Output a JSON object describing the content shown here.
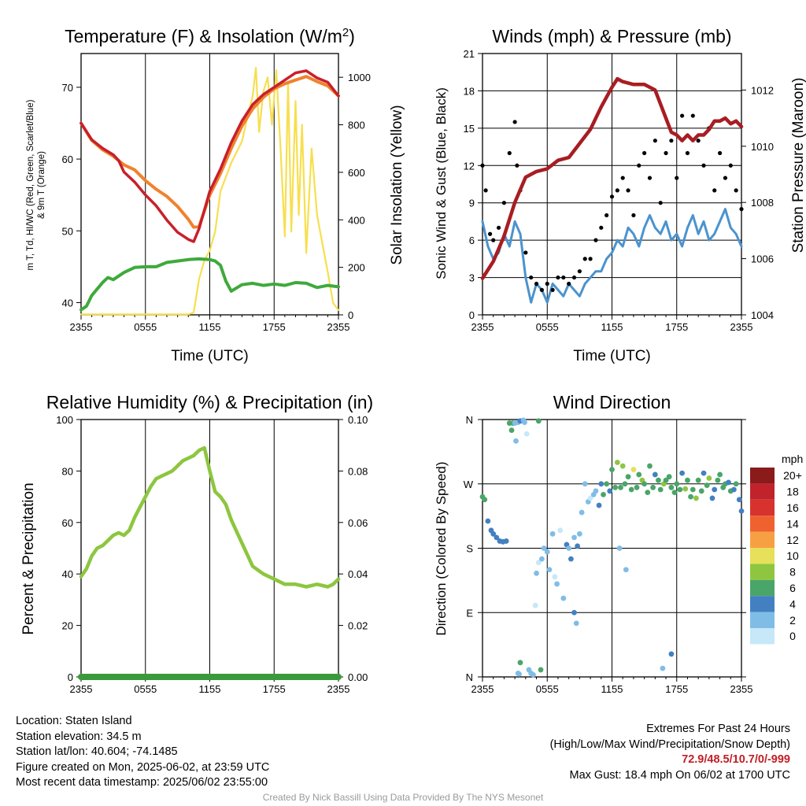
{
  "colors": {
    "temp_red": "#c8202a",
    "dewpoint_green": "#3fa93c",
    "nine_m_orange": "#f0822e",
    "solar_yellow": "#f7df4f",
    "wind_blue": "#4b93cf",
    "gust_black": "#000000",
    "pressure_maroon": "#a81d22",
    "rh_green": "#8dc63f",
    "precip_green": "#3a9a3a"
  },
  "chart_data": [
    {
      "type": "line",
      "title": "Temperature (F) & Insolation (W/m²)",
      "xlabel": "Time (UTC)",
      "ylabel": "2m T, Td, HI/WC (Red, Green, Scarlet/Blue) & 9m T (Orange)",
      "ylabel2": "Solar Insolation (Yellow)",
      "x_ticks": [
        "2355",
        "0555",
        "1155",
        "1755",
        "2355"
      ],
      "y_ticks": [
        40,
        50,
        60,
        70
      ],
      "y2_ticks": [
        0,
        200,
        400,
        600,
        800,
        1000
      ],
      "ylim": [
        38.3,
        74.7
      ],
      "y2lim": [
        0,
        1100
      ],
      "grid": true,
      "series": [
        {
          "name": "2m T",
          "color": "temp_red",
          "x": [
            0,
            1,
            2,
            3,
            3.5,
            4,
            5,
            6,
            7,
            8,
            9,
            10,
            10.5,
            11,
            12,
            13,
            14,
            15,
            16,
            17,
            18,
            19,
            20,
            21,
            22,
            23,
            24
          ],
          "values": [
            65.0,
            62.7,
            61.5,
            60.6,
            59.8,
            58.2,
            56.8,
            55.0,
            53.5,
            51.5,
            49.8,
            48.8,
            48.5,
            50.3,
            55.5,
            58.6,
            62.3,
            65.3,
            67.6,
            69.0,
            70.0,
            71.0,
            72.0,
            72.3,
            71.3,
            70.7,
            68.8
          ]
        },
        {
          "name": "9m T",
          "color": "nine_m_orange",
          "x": [
            0,
            1,
            2,
            3,
            4,
            5,
            6,
            7,
            8,
            9,
            10,
            10.5,
            11,
            12,
            13,
            14,
            15,
            16,
            17,
            18,
            19,
            20,
            21,
            22,
            23,
            24
          ],
          "values": [
            65.0,
            62.6,
            61.3,
            60.4,
            59.2,
            58.5,
            57.0,
            55.8,
            54.8,
            53.4,
            51.6,
            50.5,
            50.6,
            55.0,
            58.0,
            61.5,
            64.6,
            67.0,
            68.6,
            69.8,
            70.5,
            71.0,
            71.5,
            70.8,
            70.2,
            68.8
          ]
        },
        {
          "name": "Td",
          "color": "dewpoint_green",
          "x": [
            0,
            0.5,
            1,
            2,
            2.5,
            3,
            4,
            5,
            6,
            7,
            8,
            9,
            10,
            11,
            12,
            12.5,
            13,
            13.5,
            14,
            15,
            16,
            17,
            18,
            19,
            20,
            21,
            22,
            23,
            24
          ],
          "values": [
            39.0,
            39.5,
            41.0,
            42.8,
            43.5,
            43.2,
            44.2,
            44.9,
            45.0,
            45.0,
            45.6,
            45.8,
            46.0,
            46.1,
            46.0,
            45.8,
            45.2,
            43.0,
            41.6,
            42.5,
            42.7,
            42.4,
            42.6,
            42.4,
            42.8,
            42.7,
            42.1,
            42.4,
            42.2
          ]
        },
        {
          "name": "Solar Insolation",
          "color": "solar_yellow",
          "axis": "y2",
          "x": [
            0,
            5,
            8,
            9,
            10,
            10.5,
            11,
            11.5,
            12,
            12.5,
            13,
            14,
            15,
            15.5,
            16,
            16.3,
            16.6,
            17,
            17.4,
            17.8,
            18.2,
            18.6,
            19,
            19.3,
            19.6,
            20,
            20.3,
            20.6,
            21,
            21.5,
            22,
            22.5,
            23,
            23.5,
            24
          ],
          "values": [
            2,
            2,
            2,
            2,
            2,
            10,
            150,
            230,
            270,
            350,
            520,
            640,
            730,
            830,
            920,
            1040,
            770,
            940,
            1000,
            800,
            1030,
            700,
            330,
            980,
            350,
            900,
            420,
            800,
            260,
            700,
            420,
            300,
            180,
            50,
            20
          ]
        }
      ]
    },
    {
      "type": "line",
      "title": "Winds (mph) & Pressure (mb)",
      "xlabel": "Time (UTC)",
      "ylabel": "Sonic Wind & Gust (Blue, Black)",
      "ylabel2": "Station Pressure (Maroon)",
      "x_ticks": [
        "2355",
        "0555",
        "1155",
        "1755",
        "2355"
      ],
      "y_ticks": [
        0,
        3,
        6,
        9,
        12,
        15,
        18,
        21
      ],
      "y2_ticks": [
        1004,
        1006,
        1008,
        1010,
        1012
      ],
      "ylim": [
        0,
        21
      ],
      "y2lim": [
        1004,
        1013.3
      ],
      "grid": true,
      "series": [
        {
          "name": "Sonic Wind",
          "color": "wind_blue",
          "x": [
            0,
            0.5,
            1,
            1.5,
            2,
            2.5,
            3,
            3.5,
            4,
            4.5,
            5,
            5.5,
            6,
            6.5,
            7,
            7.5,
            8,
            8.5,
            9,
            9.5,
            10,
            10.5,
            11,
            11.5,
            12,
            12.5,
            13,
            13.5,
            14,
            14.5,
            15,
            15.5,
            16,
            16.5,
            17,
            17.5,
            18,
            18.5,
            19,
            19.5,
            20,
            20.5,
            21,
            21.5,
            22,
            22.5,
            23,
            23.5,
            24
          ],
          "values": [
            7.5,
            5.5,
            4.5,
            5.0,
            6.5,
            5.5,
            7.5,
            6.5,
            3.0,
            1.0,
            2.5,
            2.0,
            1.0,
            2.5,
            2.0,
            1.5,
            2.5,
            2.0,
            1.5,
            2.5,
            3.0,
            3.5,
            3.5,
            4.5,
            5.0,
            6.0,
            5.5,
            7.0,
            6.5,
            5.5,
            7.0,
            8.0,
            7.0,
            6.5,
            7.5,
            6.0,
            6.5,
            5.5,
            7.0,
            8.0,
            6.5,
            7.5,
            6.0,
            6.5,
            7.5,
            8.5,
            7.0,
            6.5,
            5.5
          ]
        },
        {
          "name": "Gust",
          "color": "gust_black",
          "render": "points",
          "x": [
            0,
            0.3,
            0.7,
            1,
            1.5,
            2,
            2.5,
            3,
            3.2,
            3.5,
            4,
            4.5,
            5,
            5.5,
            6,
            6.5,
            7,
            7.5,
            8,
            8.5,
            9,
            9.5,
            10,
            10.5,
            11,
            11.5,
            12,
            12.5,
            13,
            13.5,
            14,
            14.5,
            15,
            15.5,
            16,
            16.5,
            17,
            17.5,
            18,
            18.5,
            19,
            19.5,
            20,
            20.5,
            21,
            21.5,
            22,
            22.5,
            23,
            23.5,
            24
          ],
          "values": [
            12,
            10,
            6.5,
            6,
            7,
            9,
            13,
            15.5,
            12,
            10,
            5,
            3,
            2.5,
            2,
            2.5,
            2,
            3,
            3,
            2.5,
            3,
            3.5,
            4.5,
            4.5,
            6,
            7,
            8,
            9.5,
            10,
            11,
            10,
            8,
            12,
            13,
            11,
            14,
            9,
            13,
            14,
            11,
            16,
            13,
            16,
            14,
            12,
            15,
            10,
            13,
            11,
            12,
            10,
            8.5
          ]
        },
        {
          "name": "Station Pressure",
          "color": "pressure_maroon",
          "axis": "y2",
          "x": [
            0,
            1,
            2,
            3,
            4,
            5,
            6,
            7,
            8,
            9,
            10,
            11,
            12,
            12.5,
            13,
            14,
            15,
            16,
            16.5,
            17,
            17.5,
            18,
            18.5,
            19,
            19.5,
            20,
            20.5,
            21,
            21.5,
            22,
            22.5,
            23,
            23.5,
            24
          ],
          "values": [
            1005.3,
            1005.9,
            1006.8,
            1008.0,
            1008.9,
            1009.1,
            1009.2,
            1009.5,
            1009.6,
            1010.1,
            1010.6,
            1011.4,
            1012.1,
            1012.4,
            1012.3,
            1012.2,
            1012.2,
            1012.0,
            1011.5,
            1011.0,
            1010.5,
            1010.4,
            1010.2,
            1010.4,
            1010.2,
            1010.4,
            1010.4,
            1010.6,
            1010.9,
            1010.9,
            1011.0,
            1010.8,
            1010.9,
            1010.7
          ]
        }
      ]
    },
    {
      "type": "line",
      "title": "Relative Humidity (%) & Precipitation (in)",
      "xlabel": "",
      "ylabel": "Percent & Precipitation",
      "x_ticks": [
        "2355",
        "0555",
        "1155",
        "1755",
        "2355"
      ],
      "y_ticks": [
        0,
        20,
        40,
        60,
        80,
        100
      ],
      "y2_ticks": [
        "0.00",
        "0.02",
        "0.04",
        "0.06",
        "0.08",
        "0.10"
      ],
      "ylim": [
        0,
        100
      ],
      "y2lim": [
        0,
        0.1
      ],
      "grid": true,
      "series": [
        {
          "name": "Relative Humidity",
          "color": "rh_green",
          "x": [
            0,
            0.5,
            1,
            1.5,
            2,
            2.5,
            3,
            3.5,
            4,
            4.5,
            5,
            5.5,
            6,
            6.5,
            7,
            7.5,
            8,
            8.5,
            9,
            9.5,
            10,
            10.5,
            11,
            11.5,
            12,
            12.5,
            13,
            13.5,
            14,
            15,
            16,
            17,
            18,
            19,
            20,
            21,
            22,
            23,
            23.5,
            24
          ],
          "values": [
            39,
            42,
            47,
            50,
            51,
            53,
            55,
            56,
            55,
            57,
            62,
            66,
            70,
            74,
            77,
            78,
            79,
            80,
            82,
            84,
            85,
            86,
            88,
            89,
            80,
            72,
            70,
            67,
            61,
            52,
            43,
            40,
            38,
            36,
            36,
            35,
            36,
            35,
            36,
            38
          ]
        },
        {
          "name": "Precipitation",
          "color": "precip_green",
          "axis": "y2",
          "x": [
            0,
            24
          ],
          "values": [
            0,
            0
          ]
        }
      ]
    },
    {
      "type": "scatter",
      "title": "Wind Direction",
      "ylabel": "Direction (Colored By Speed)",
      "x_ticks": [
        "2355",
        "0555",
        "1155",
        "1755",
        "2355"
      ],
      "y_ticks": [
        "N",
        "E",
        "S",
        "W",
        "N"
      ],
      "ylim": [
        0,
        360
      ],
      "grid": true,
      "legend": {
        "title": "mph",
        "labels": [
          "20+",
          "18",
          "16",
          "14",
          "12",
          "10",
          "8",
          "6",
          "4",
          "2",
          "0"
        ],
        "colors": [
          "#8b1a1a",
          "#c0232b",
          "#d8322e",
          "#ef612f",
          "#f7a043",
          "#e6e05a",
          "#8fc640",
          "#4aa569",
          "#4380c2",
          "#80bde6",
          "#c6e8f8"
        ]
      },
      "points": {
        "x": [
          0,
          0.2,
          0.5,
          0.8,
          1,
          1.3,
          1.6,
          1.9,
          2.2,
          2.5,
          2.7,
          2.8,
          3.0,
          3.1,
          3.3,
          3.5,
          3.8,
          3.9,
          4.1,
          4.3,
          4.5,
          4.7,
          4.9,
          5.0,
          5.2,
          5.5,
          5.7,
          6.0,
          6.2,
          6.5,
          6.7,
          6.9,
          7.2,
          7.5,
          7.8,
          8.0,
          8.2,
          8.5,
          8.8,
          9.0,
          9.2,
          9.5,
          9.8,
          10.0,
          10.3,
          10.5,
          10.8,
          11.0,
          11.2,
          11.5,
          11.8,
          12.0,
          12.3,
          12.5,
          12.8,
          13.0,
          13.2,
          13.5,
          13.8,
          14.0,
          14.3,
          14.5,
          14.8,
          15.0,
          15.3,
          15.5,
          15.8,
          16.0,
          16.3,
          16.5,
          16.8,
          17.0,
          17.3,
          17.5,
          17.8,
          18.0,
          18.3,
          18.5,
          18.8,
          19.0,
          19.3,
          19.5,
          19.8,
          20.0,
          20.3,
          20.5,
          20.8,
          21.0,
          21.3,
          21.5,
          21.8,
          22.0,
          22.3,
          22.5,
          22.8,
          23.0,
          23.3,
          23.5,
          23.8,
          24.0,
          5.4,
          5.2,
          3.3,
          3.4,
          8.5,
          8.7,
          17.5,
          16.7,
          13.3,
          12.7,
          3.5
        ],
        "dir": [
          252,
          248,
          218,
          205,
          200,
          195,
          190,
          189,
          190,
          355,
          345,
          355,
          355,
          330,
          356,
          358,
          359,
          356,
          340,
          10,
          5,
          3,
          100,
          145,
          160,
          165,
          180,
          175,
          150,
          200,
          140,
          130,
          205,
          110,
          185,
          180,
          165,
          195,
          183,
          200,
          230,
          270,
          245,
          250,
          255,
          260,
          240,
          270,
          255,
          270,
          260,
          290,
          265,
          300,
          265,
          295,
          270,
          280,
          262,
          290,
          265,
          283,
          275,
          270,
          258,
          295,
          265,
          283,
          275,
          262,
          270,
          275,
          280,
          265,
          258,
          270,
          262,
          285,
          263,
          275,
          252,
          262,
          250,
          275,
          260,
          285,
          268,
          278,
          250,
          262,
          275,
          283,
          265,
          270,
          272,
          260,
          262,
          270,
          248,
          232,
          10,
          358,
          5,
          4,
          90,
          75,
          32,
          12,
          150,
          180,
          20
        ],
        "speed": [
          7,
          6,
          5,
          4,
          4,
          4,
          4,
          4,
          4,
          6,
          7,
          6,
          3,
          3,
          2,
          5,
          2,
          3,
          1,
          2,
          3,
          2,
          1,
          2,
          1,
          2,
          2,
          3,
          2,
          3,
          1,
          2,
          1,
          2,
          4,
          3,
          4,
          3,
          4,
          3,
          2,
          3,
          2,
          1,
          2,
          3,
          4,
          5,
          6,
          6,
          5,
          7,
          6,
          8,
          6,
          9,
          7,
          6,
          7,
          10,
          6,
          7,
          8,
          7,
          7,
          6,
          6,
          5,
          7,
          6,
          8,
          7,
          6,
          7,
          7,
          6,
          7,
          5,
          8,
          6,
          7,
          7,
          8,
          6,
          7,
          4,
          6,
          8,
          4,
          5,
          6,
          6,
          7,
          6,
          5,
          7,
          4,
          6,
          4,
          4,
          7,
          6,
          3,
          2,
          4,
          3,
          4,
          3,
          3,
          3,
          6
        ]
      }
    }
  ],
  "info_left": [
    "Location: Staten Island",
    "Station elevation: 34.5 m",
    "Station lat/lon: 40.604; -74.1485",
    "Figure created on Mon, 2025-06-02, at 23:59 UTC",
    "Most recent data timestamp: 2025/06/02 23:55:00"
  ],
  "extremes": {
    "title": "Extremes For Past 24 Hours",
    "subtitle": "(High/Low/Max Wind/Precipitation/Snow Depth)",
    "values": "72.9/48.5/10.7/0/-999",
    "max_gust": "Max Gust: 18.4 mph On 06/02 at 1700 UTC"
  },
  "credit": "Created By Nick Bassill Using Data Provided By The NYS Mesonet"
}
